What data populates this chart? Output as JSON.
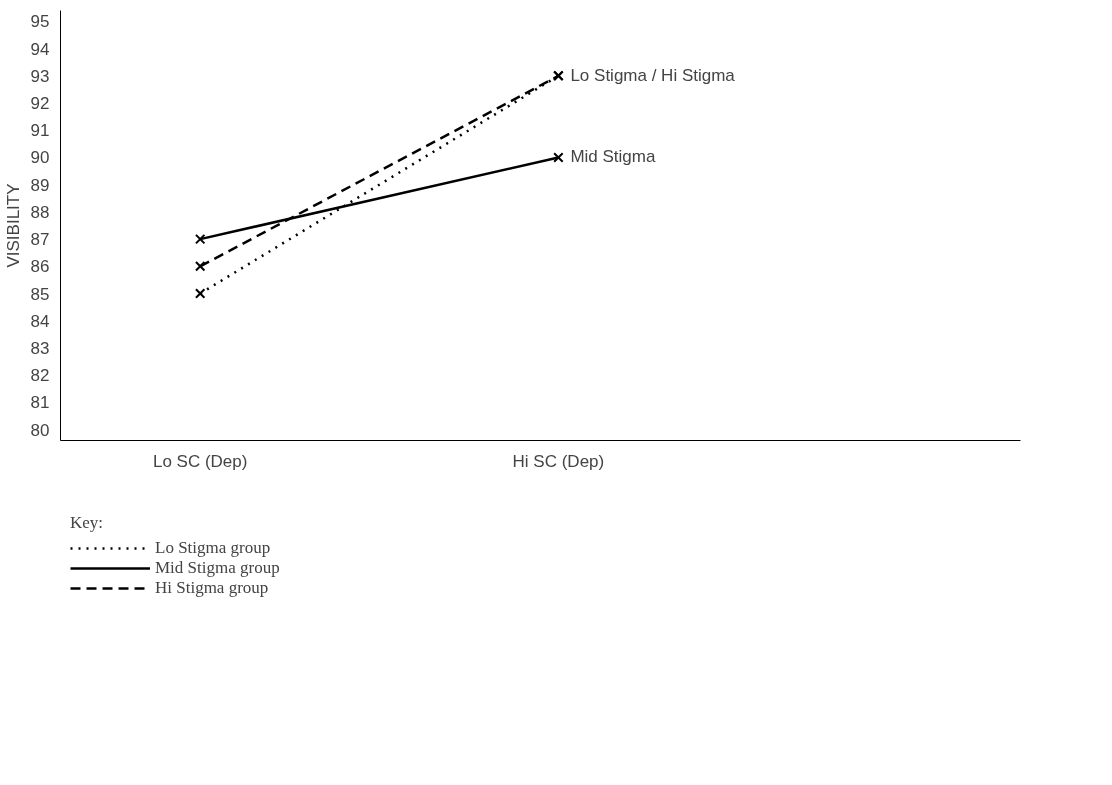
{
  "chart_data": {
    "type": "line",
    "ylabel": "VISIBILITY",
    "legend_title": "Key:",
    "categories": [
      "Lo SC (Dep)",
      "Hi SC (Dep)"
    ],
    "series": [
      {
        "name": "Lo Stigma group",
        "color": "#000000",
        "values": [
          85,
          93
        ],
        "line_style": "dotted"
      },
      {
        "name": "Mid Stigma group",
        "color": "#000000",
        "values": [
          87,
          90
        ],
        "line_style": "solid"
      },
      {
        "name": "Hi Stigma group",
        "color": "#000000",
        "values": [
          86,
          93
        ],
        "line_style": "dashed"
      }
    ],
    "ylim": [
      79.6,
      95.4
    ],
    "yticks": [
      80,
      81,
      82,
      83,
      84,
      85,
      86,
      87,
      88,
      89,
      90,
      91,
      92,
      93,
      94,
      95
    ],
    "marker": "cross",
    "grid": false,
    "legend": "bottom left",
    "annotations": [
      {
        "text": "Lo Stigma / Hi Stigma",
        "x": "Hi SC (Dep)",
        "y": 93
      },
      {
        "text": "Mid Stigma",
        "x": "Hi SC (Dep)",
        "y": 90
      }
    ]
  }
}
